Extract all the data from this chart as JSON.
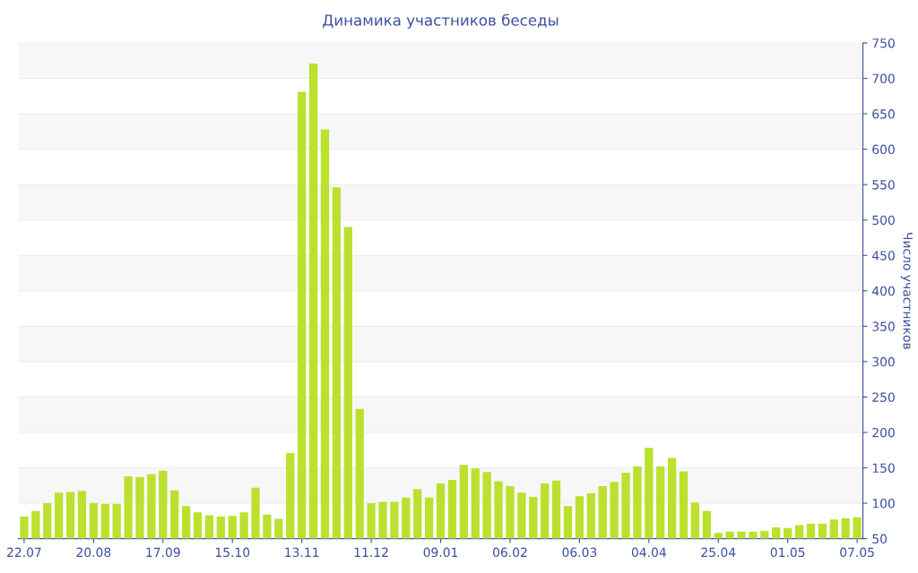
{
  "chart_data": {
    "type": "bar",
    "title": "Динамика участников беседы",
    "y2label": "Число участников",
    "categories": [
      "22.07",
      null,
      null,
      null,
      null,
      null,
      "20.08",
      null,
      null,
      null,
      null,
      null,
      "17.09",
      null,
      null,
      null,
      null,
      null,
      "15.10",
      null,
      null,
      null,
      null,
      null,
      "13.11",
      null,
      null,
      null,
      null,
      null,
      "11.12",
      null,
      null,
      null,
      null,
      null,
      "09.01",
      null,
      null,
      null,
      null,
      null,
      "06.02",
      null,
      null,
      null,
      null,
      null,
      "06.03",
      null,
      null,
      null,
      null,
      null,
      "04.04",
      null,
      null,
      null,
      null,
      null,
      "25.04",
      null,
      null,
      null,
      null,
      null,
      "01.05",
      null,
      null,
      null,
      null,
      null,
      "07.05"
    ],
    "series": [
      {
        "color": "#bce02e",
        "axis": "y2",
        "values": [
          81,
          89,
          100,
          115,
          116,
          117,
          100,
          99,
          99,
          138,
          137,
          141,
          146,
          118,
          96,
          87,
          83,
          81,
          82,
          87,
          122,
          84,
          78,
          171,
          681,
          721,
          628,
          546,
          490,
          233,
          100,
          102,
          102,
          108,
          120,
          108,
          128,
          133,
          154,
          149,
          144,
          131,
          124,
          115,
          109,
          128,
          132,
          96,
          110,
          114,
          124,
          130,
          143,
          152,
          178,
          152,
          164,
          145,
          101,
          89,
          58,
          60,
          60,
          60,
          61,
          66,
          65,
          69,
          71,
          71,
          77,
          79,
          80
        ]
      }
    ],
    "y2lim": [
      50,
      750
    ],
    "y2ticks": [
      50,
      100,
      150,
      200,
      250,
      300,
      350,
      400,
      450,
      500,
      550,
      600,
      650,
      700,
      750
    ],
    "grid": "y",
    "legend": false
  }
}
